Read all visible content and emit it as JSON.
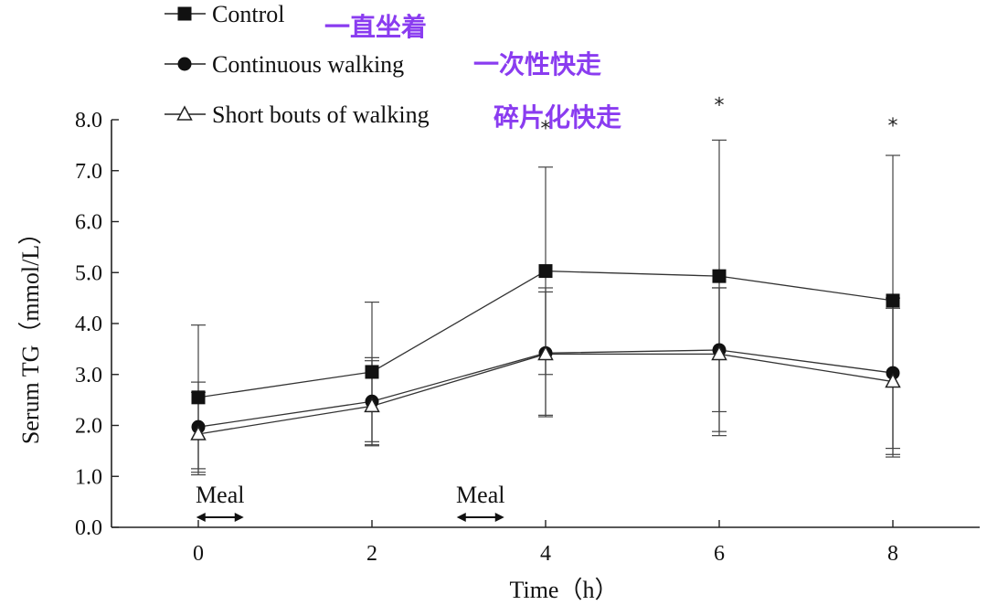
{
  "chart_data": {
    "type": "line",
    "title": "",
    "xlabel": "Time（h）",
    "ylabel": "Serum TG（mmol/L）",
    "x": [
      0,
      2,
      4,
      6,
      8
    ],
    "x_ticks": [
      "0",
      "2",
      "4",
      "6",
      "8"
    ],
    "y_ticks": [
      "0.0",
      "1.0",
      "2.0",
      "3.0",
      "4.0",
      "5.0",
      "6.0",
      "7.0",
      "8.0"
    ],
    "xlim": [
      -1,
      9
    ],
    "ylim": [
      0,
      8
    ],
    "grid": false,
    "legend_position": "top-left",
    "series": [
      {
        "name": "Control",
        "annotation_cn": "一直坐着",
        "marker": "filled-square",
        "color": "#111111",
        "values": [
          2.55,
          3.05,
          5.03,
          4.93,
          4.45
        ],
        "err_upper": [
          3.97,
          4.42,
          7.07,
          7.6,
          7.3
        ],
        "err_lower": [
          1.15,
          1.68,
          3.0,
          2.27,
          1.55
        ]
      },
      {
        "name": "Continuous walking",
        "annotation_cn": "一次性快走",
        "marker": "filled-circle",
        "color": "#111111",
        "values": [
          1.97,
          2.47,
          3.42,
          3.48,
          3.03
        ],
        "err_upper": [
          2.85,
          3.33,
          4.62,
          4.7,
          4.5
        ],
        "err_lower": [
          1.08,
          1.62,
          2.2,
          1.8,
          1.43
        ]
      },
      {
        "name": "Short bouts of walking",
        "annotation_cn": "碎片化快走",
        "marker": "open-triangle",
        "color": "#111111",
        "values": [
          1.83,
          2.38,
          3.4,
          3.4,
          2.86
        ],
        "err_upper": [
          2.65,
          3.27,
          4.7,
          4.7,
          4.3
        ],
        "err_lower": [
          1.03,
          1.6,
          2.17,
          1.88,
          1.38
        ]
      }
    ],
    "significance": [
      {
        "x": 4,
        "label": "*",
        "y": 7.95
      },
      {
        "x": 6,
        "label": "*",
        "y": 8.4
      },
      {
        "x": 8,
        "label": "*",
        "y": 8.0
      }
    ],
    "annotations": [
      {
        "label": "Meal",
        "x_center": 0.25,
        "arrow": "↔"
      },
      {
        "label": "Meal",
        "x_center": 3.25,
        "arrow": "↔"
      }
    ]
  }
}
